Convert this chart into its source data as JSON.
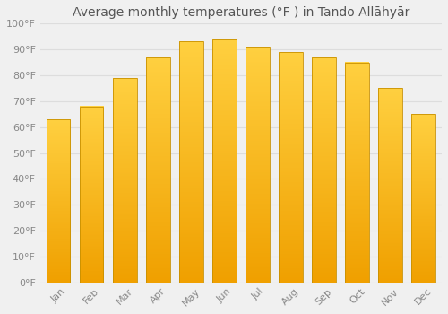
{
  "title": "Average monthly temperatures (°F ) in Tando Allāhyār",
  "months": [
    "Jan",
    "Feb",
    "Mar",
    "Apr",
    "May",
    "Jun",
    "Jul",
    "Aug",
    "Sep",
    "Oct",
    "Nov",
    "Dec"
  ],
  "values": [
    63,
    68,
    79,
    87,
    93,
    94,
    91,
    89,
    87,
    85,
    75,
    65
  ],
  "bar_color_bottom": "#F0A000",
  "bar_color_top": "#FFD040",
  "bar_edge_color": "#C89000",
  "background_color": "#F0F0F0",
  "grid_color": "#DDDDDD",
  "ylim": [
    0,
    100
  ],
  "yticks": [
    0,
    10,
    20,
    30,
    40,
    50,
    60,
    70,
    80,
    90,
    100
  ],
  "ytick_labels": [
    "0°F",
    "10°F",
    "20°F",
    "30°F",
    "40°F",
    "50°F",
    "60°F",
    "70°F",
    "80°F",
    "90°F",
    "100°F"
  ],
  "title_fontsize": 10,
  "tick_fontsize": 8,
  "font_color": "#888888",
  "title_color": "#555555"
}
